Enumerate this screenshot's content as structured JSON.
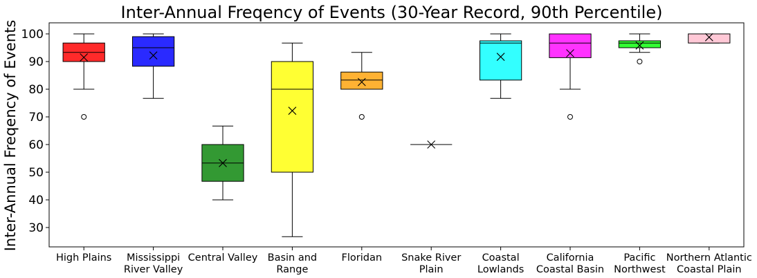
{
  "chart_data": {
    "type": "box",
    "title": "Inter-Annual Freqency of Events (30-Year Record, 90th Percentile)",
    "xlabel": "",
    "ylabel": "Inter-Annual Freqency of Events",
    "ylim": [
      23,
      104
    ],
    "yticks": [
      30,
      40,
      50,
      60,
      70,
      80,
      90,
      100
    ],
    "grid": false,
    "mean_marker": "x",
    "categories": [
      [
        "High Plains"
      ],
      [
        "Mississippi",
        "River Valley"
      ],
      [
        "Central Valley"
      ],
      [
        "Basin and",
        "Range"
      ],
      [
        "Floridan"
      ],
      [
        "Snake River",
        "Plain"
      ],
      [
        "Coastal",
        "Lowlands"
      ],
      [
        "California",
        "Coastal Basin"
      ],
      [
        "Pacific",
        "Northwest"
      ],
      [
        "Northern Atlantic",
        "Coastal Plain"
      ]
    ],
    "boxes": [
      {
        "color": "#ff2a2a",
        "whislo": 80,
        "q1": 90,
        "med": 93.3,
        "q3": 96.7,
        "whishi": 100,
        "mean": 91.5,
        "fliers": [
          70
        ]
      },
      {
        "color": "#2a2aff",
        "whislo": 76.7,
        "q1": 88.3,
        "med": 95,
        "q3": 99,
        "whishi": 100,
        "mean": 92.2,
        "fliers": []
      },
      {
        "color": "#339933",
        "whislo": 40,
        "q1": 46.7,
        "med": 53.3,
        "q3": 60,
        "whishi": 66.7,
        "mean": 53.3,
        "fliers": []
      },
      {
        "color": "#ffff33",
        "whislo": 26.7,
        "q1": 50,
        "med": 80,
        "q3": 90,
        "whishi": 96.7,
        "mean": 72.2,
        "fliers": []
      },
      {
        "color": "#ffb233",
        "whislo": 80,
        "q1": 80,
        "med": 83.3,
        "q3": 86.2,
        "whishi": 93.3,
        "mean": 82.6,
        "fliers": [
          70
        ]
      },
      {
        "color": "#cccccc",
        "whislo": 60,
        "q1": 60,
        "med": 60,
        "q3": 60,
        "whishi": 60,
        "mean": 60,
        "fliers": []
      },
      {
        "color": "#33ffff",
        "whislo": 76.7,
        "q1": 83.3,
        "med": 96.7,
        "q3": 97.5,
        "whishi": 100,
        "mean": 91.7,
        "fliers": []
      },
      {
        "color": "#ff33ff",
        "whislo": 80,
        "q1": 91.4,
        "med": 96.7,
        "q3": 100,
        "whishi": 100,
        "mean": 93,
        "fliers": [
          70
        ]
      },
      {
        "color": "#33ff33",
        "whislo": 93.3,
        "q1": 95,
        "med": 96.7,
        "q3": 97.5,
        "whishi": 100,
        "mean": 95.8,
        "fliers": [
          90
        ]
      },
      {
        "color": "#ffc8d6",
        "whislo": 96.7,
        "q1": 96.7,
        "med": 100,
        "q3": 100,
        "whishi": 100,
        "mean": 98.8,
        "fliers": []
      }
    ]
  }
}
